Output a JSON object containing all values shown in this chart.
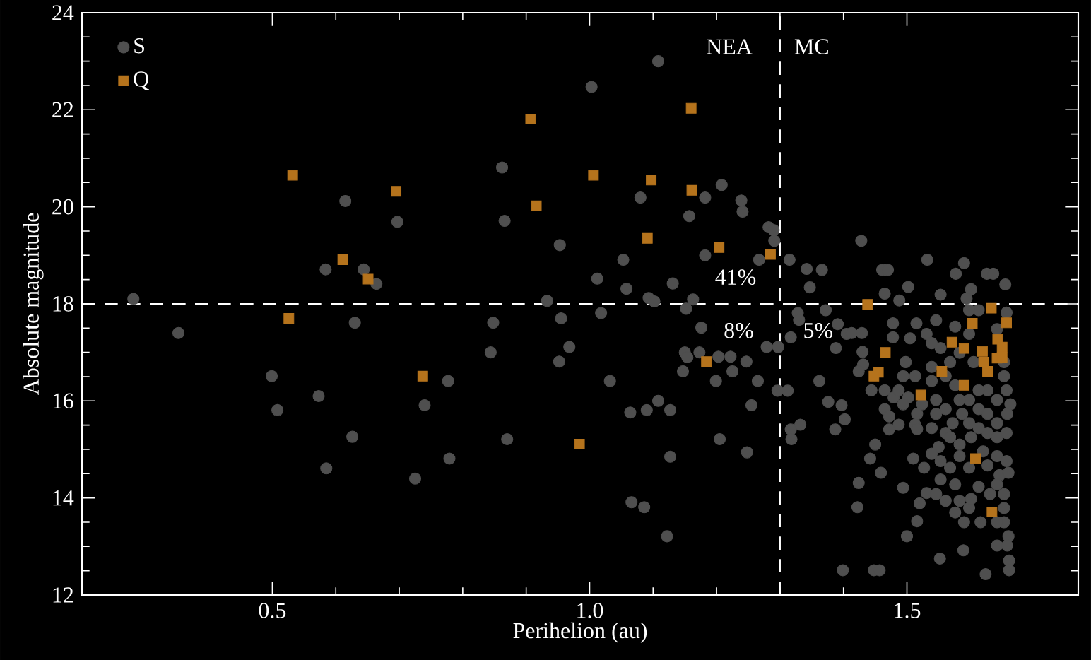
{
  "chart_data": {
    "type": "scatter",
    "xlabel": "Perihelion (au)",
    "ylabel": "Absolute magnitude",
    "xlim": [
      0.2,
      1.77
    ],
    "ylim": [
      12,
      24
    ],
    "xticks": [
      0.5,
      {
        "value": 1,
        "label": "1.0"
      },
      1.5
    ],
    "yticks": [
      12,
      14,
      16,
      18,
      20,
      22,
      24
    ],
    "legend": "top left",
    "grid": false,
    "ref_lines": [
      {
        "axis": "x",
        "value": 1.3,
        "color": "#ffffff",
        "line_style": "dashed"
      },
      {
        "axis": "y",
        "value": 18,
        "color": "#ffffff",
        "line_style": "dashed"
      }
    ],
    "annotations": [
      {
        "text": "NEA",
        "x": 1.22,
        "y": 23.3
      },
      {
        "text": "MC",
        "x": 1.35,
        "y": 23.3
      },
      {
        "text": "41%",
        "x": 1.23,
        "y": 18.55
      },
      {
        "text": "8%",
        "x": 1.235,
        "y": 17.45
      },
      {
        "text": "5%",
        "x": 1.36,
        "y": 17.45
      }
    ],
    "series": [
      {
        "name": "S",
        "color": "#4f4f4f",
        "marker": "circle",
        "x": [
          0.281,
          0.352,
          0.499,
          0.508,
          0.584,
          0.573,
          0.585,
          0.615,
          0.63,
          0.626,
          0.644,
          0.664,
          0.697,
          0.725,
          0.74,
          1.108,
          1.003,
          0.862,
          0.866,
          0.953,
          1.08,
          1.208,
          1.182,
          1.239,
          1.241,
          1.157,
          1.282,
          1.291,
          1.29,
          1.182,
          1.267,
          1.315,
          1.053,
          1.012,
          1.058,
          1.131,
          0.933,
          1.093,
          1.102,
          1.163,
          1.152,
          1.018,
          0.955,
          0.848,
          1.176,
          0.844,
          0.968,
          0.952,
          1.15,
          1.154,
          1.173,
          1.203,
          1.222,
          1.247,
          1.279,
          1.297,
          1.317,
          1.147,
          1.225,
          1.199,
          1.265,
          1.032,
          0.777,
          1.108,
          1.064,
          1.09,
          1.127,
          1.255,
          1.296,
          1.312,
          1.317,
          1.332,
          1.318,
          0.87,
          1.205,
          1.248,
          1.127,
          0.779,
          1.066,
          1.086,
          1.122,
          1.328,
          1.33,
          1.428,
          1.532,
          1.59,
          1.342,
          1.366,
          1.461,
          1.47,
          1.577,
          1.626,
          1.636,
          1.655,
          1.347,
          1.502,
          1.465,
          1.553,
          1.488,
          1.601,
          1.594,
          1.372,
          1.391,
          1.405,
          1.413,
          1.429,
          1.388,
          1.43,
          1.478,
          1.478,
          1.515,
          1.546,
          1.576,
          1.505,
          1.531,
          1.539,
          1.553,
          1.498,
          1.431,
          1.424,
          1.362,
          1.494,
          1.513,
          1.539,
          1.568,
          1.583,
          1.605,
          1.465,
          1.479,
          1.502,
          1.444,
          1.376,
          1.397,
          1.402,
          1.387,
          1.465,
          1.472,
          1.487,
          1.472,
          1.513,
          1.516,
          1.546,
          1.561,
          1.546,
          1.572,
          1.561,
          1.587,
          1.598,
          1.613,
          1.627,
          1.642,
          1.657,
          1.663,
          1.658,
          1.642,
          1.627,
          1.613,
          1.601,
          1.583,
          1.568,
          1.55,
          1.539,
          1.45,
          1.442,
          1.459,
          1.51,
          1.527,
          1.553,
          1.568,
          1.583,
          1.598,
          1.62,
          1.642,
          1.657,
          1.646,
          1.66,
          1.553,
          1.576,
          1.613,
          1.531,
          1.52,
          1.561,
          1.424,
          1.422,
          1.494,
          1.516,
          1.598,
          1.59,
          1.616,
          1.653,
          1.653,
          1.66,
          1.642,
          1.658,
          1.589,
          1.552,
          1.5,
          1.661,
          1.661,
          1.624,
          1.399,
          1.448,
          1.457,
          1.642,
          1.631,
          1.653,
          1.601,
          1.583,
          1.642,
          1.657,
          1.653,
          1.653,
          1.598,
          1.642,
          1.613,
          1.657,
          1.598,
          1.561,
          1.576,
          1.539,
          1.524,
          1.487,
          1.516,
          1.494,
          1.539,
          1.598,
          1.627,
          1.613,
          1.583,
          1.627,
          1.642,
          1.576,
          1.546
        ],
        "values": [
          18.1,
          17.4,
          16.51,
          15.81,
          18.71,
          16.1,
          14.61,
          20.12,
          17.61,
          15.26,
          18.71,
          18.41,
          19.69,
          14.4,
          15.91,
          23.0,
          22.47,
          20.81,
          19.71,
          19.21,
          20.19,
          20.45,
          20.19,
          20.13,
          19.9,
          19.81,
          19.58,
          19.3,
          19.52,
          19.0,
          18.91,
          18.91,
          18.91,
          18.52,
          18.31,
          18.42,
          18.06,
          18.12,
          18.05,
          18.09,
          17.9,
          17.81,
          17.7,
          17.61,
          17.51,
          17.0,
          17.11,
          16.81,
          17.0,
          16.9,
          17.0,
          16.91,
          16.91,
          16.81,
          17.11,
          17.11,
          17.31,
          16.61,
          16.61,
          16.41,
          16.41,
          16.41,
          16.41,
          16.0,
          15.76,
          15.81,
          15.81,
          15.91,
          16.21,
          16.21,
          15.41,
          15.51,
          15.21,
          15.21,
          15.21,
          14.94,
          14.85,
          14.81,
          13.91,
          13.81,
          13.21,
          17.81,
          17.67,
          19.3,
          18.91,
          18.84,
          18.72,
          18.7,
          18.7,
          18.7,
          18.62,
          18.62,
          18.62,
          18.4,
          18.34,
          18.35,
          18.21,
          18.19,
          18.07,
          18.3,
          18.11,
          17.87,
          17.58,
          17.38,
          17.4,
          17.4,
          17.09,
          17.01,
          17.6,
          17.31,
          17.6,
          17.66,
          17.53,
          17.29,
          17.38,
          17.19,
          17.09,
          16.8,
          16.75,
          16.61,
          16.41,
          16.51,
          16.51,
          16.7,
          16.8,
          16.99,
          16.8,
          16.22,
          16.07,
          16.07,
          16.22,
          15.98,
          15.91,
          15.62,
          15.41,
          15.83,
          15.68,
          15.51,
          15.41,
          15.51,
          15.42,
          16.02,
          15.83,
          15.73,
          15.54,
          15.34,
          15.73,
          16.02,
          15.83,
          16.22,
          16.02,
          16.22,
          15.93,
          15.73,
          15.54,
          15.34,
          15.44,
          15.25,
          15.1,
          15.25,
          15.05,
          14.91,
          15.1,
          14.81,
          14.52,
          14.81,
          14.62,
          14.76,
          14.62,
          14.86,
          14.62,
          14.96,
          14.86,
          14.76,
          14.47,
          14.52,
          14.38,
          14.28,
          14.23,
          14.1,
          13.89,
          13.94,
          14.31,
          13.81,
          14.21,
          13.52,
          13.79,
          13.5,
          13.5,
          13.79,
          13.5,
          13.21,
          13.02,
          13.02,
          12.92,
          12.75,
          13.21,
          12.71,
          12.51,
          12.43,
          12.51,
          12.51,
          12.51,
          13.5,
          14.08,
          14.08,
          13.98,
          13.94,
          15.25,
          15.34,
          16.51,
          16.8,
          17.38,
          17.48,
          17.87,
          17.82,
          17.87,
          16.51,
          16.32,
          16.41,
          15.93,
          16.22,
          15.73,
          15.93,
          15.44,
          15.54,
          15.73,
          16.22,
          16.02,
          14.67,
          14.28,
          13.7,
          14.08
        ]
      },
      {
        "name": "Q",
        "color": "#b5731c",
        "marker": "square",
        "x": [
          0.532,
          0.526,
          0.611,
          0.651,
          0.695,
          0.737,
          0.907,
          0.916,
          1.006,
          1.097,
          1.16,
          1.161,
          1.091,
          1.204,
          1.285,
          1.184,
          0.984,
          1.438,
          1.466,
          1.455,
          1.448,
          1.522,
          1.555,
          1.571,
          1.59,
          1.59,
          1.603,
          1.619,
          1.621,
          1.627,
          1.633,
          1.657,
          1.643,
          1.65,
          1.642,
          1.65,
          1.608,
          1.634
        ],
        "values": [
          20.65,
          17.7,
          18.91,
          18.51,
          20.32,
          16.51,
          21.81,
          20.02,
          20.65,
          20.55,
          22.03,
          20.34,
          19.35,
          19.16,
          19.02,
          16.81,
          15.11,
          17.99,
          17.0,
          16.59,
          16.51,
          16.12,
          16.61,
          17.21,
          17.08,
          16.32,
          17.6,
          17.02,
          16.8,
          16.61,
          17.91,
          17.61,
          17.27,
          17.11,
          16.88,
          16.9,
          14.81,
          13.71
        ]
      }
    ]
  }
}
